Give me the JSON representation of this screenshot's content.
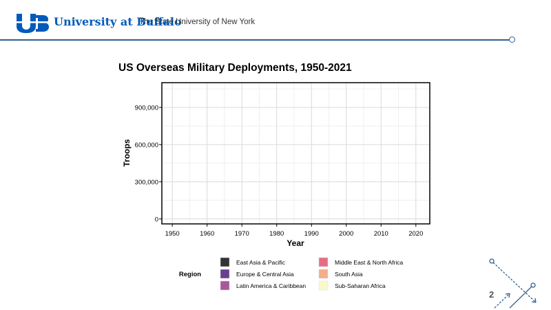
{
  "header": {
    "logo_mark": "UB",
    "university_name": "University at Buffalo",
    "subtitle": "The State University of New York",
    "brand_color": "#005bbb"
  },
  "slide": {
    "page_number": "2"
  },
  "chart_data": {
    "type": "area",
    "title": "US Overseas Military Deployments, 1950-2021",
    "xlabel": "Year",
    "ylabel": "Troops",
    "x_ticks": [
      "1950",
      "1960",
      "1970",
      "1980",
      "1990",
      "2000",
      "2010",
      "2020"
    ],
    "y_ticks": [
      "0",
      "300,000",
      "600,000",
      "900,000"
    ],
    "xlim": [
      1947,
      2024
    ],
    "ylim": [
      -40000,
      1100000
    ],
    "grid": true,
    "series": [],
    "legend": {
      "title": "Region",
      "position": "bottom",
      "items": [
        {
          "label": "East Asia & Pacific",
          "color": "#333333"
        },
        {
          "label": "Europe & Central Asia",
          "color": "#6a3f93"
        },
        {
          "label": "Latin America & Caribbean",
          "color": "#a8589b"
        },
        {
          "label": "Middle East & North Africa",
          "color": "#e56e86"
        },
        {
          "label": "South Asia",
          "color": "#f5ad8a"
        },
        {
          "label": "Sub-Saharan Africa",
          "color": "#fcf9c8"
        }
      ]
    }
  }
}
